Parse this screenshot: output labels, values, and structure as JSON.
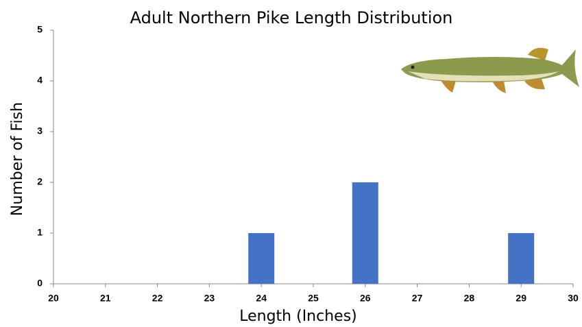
{
  "chart_data": {
    "type": "bar",
    "title": "Adult Northern Pike Length Distribution",
    "x_label": "Length (Inches)",
    "y_label": "Number of Fish",
    "x": [
      24,
      26,
      29
    ],
    "values": [
      1,
      2,
      1
    ],
    "color": "#4472c4",
    "xlim": [
      20,
      30
    ],
    "xticks": [
      20,
      21,
      22,
      23,
      24,
      25,
      26,
      27,
      28,
      29,
      30
    ],
    "ylim": [
      0,
      5
    ],
    "yticks": [
      0,
      1,
      2,
      3,
      4,
      5
    ],
    "grid": false
  }
}
